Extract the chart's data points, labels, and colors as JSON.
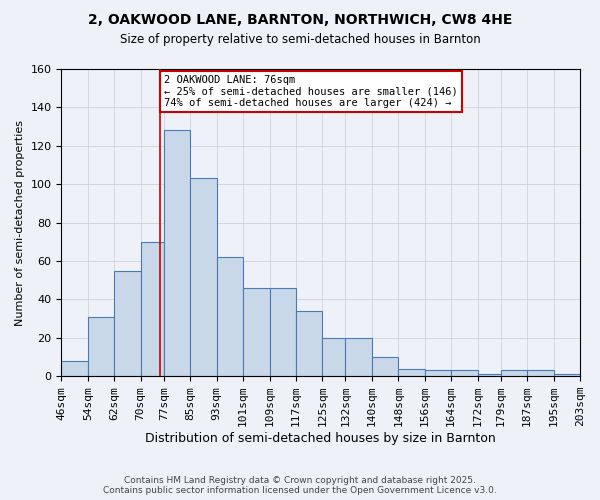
{
  "title_line1": "2, OAKWOOD LANE, BARNTON, NORTHWICH, CW8 4HE",
  "title_line2": "Size of property relative to semi-detached houses in Barnton",
  "xlabel": "Distribution of semi-detached houses by size in Barnton",
  "ylabel": "Number of semi-detached properties",
  "bar_edges": [
    46,
    54,
    62,
    70,
    77,
    85,
    93,
    101,
    109,
    117,
    125,
    132,
    140,
    148,
    156,
    164,
    172,
    179,
    187,
    195,
    203
  ],
  "bar_heights": [
    8,
    31,
    55,
    70,
    128,
    103,
    62,
    46,
    46,
    34,
    20,
    20,
    10,
    4,
    3,
    3,
    1,
    3,
    3,
    1
  ],
  "bar_color": "#c8d8e8",
  "bar_edge_color": "#4a7ab5",
  "grid_color": "#cccccc",
  "annotation_text": "2 OAKWOOD LANE: 76sqm\n← 25% of semi-detached houses are smaller (146)\n74% of semi-detached houses are larger (424) →",
  "property_line_x": 76,
  "annotation_box_color": "#ffffff",
  "annotation_box_edge_color": "#cc0000",
  "red_line_color": "#cc0000",
  "footer": "Contains HM Land Registry data © Crown copyright and database right 2025.\nContains public sector information licensed under the Open Government Licence v3.0.",
  "ylim": [
    0,
    160
  ],
  "tick_labels": [
    "46sqm",
    "54sqm",
    "62sqm",
    "70sqm",
    "77sqm",
    "85sqm",
    "93sqm",
    "101sqm",
    "109sqm",
    "117sqm",
    "125sqm",
    "132sqm",
    "140sqm",
    "148sqm",
    "156sqm",
    "164sqm",
    "172sqm",
    "179sqm",
    "187sqm",
    "195sqm",
    "203sqm"
  ],
  "background_color": "#eef2f8"
}
